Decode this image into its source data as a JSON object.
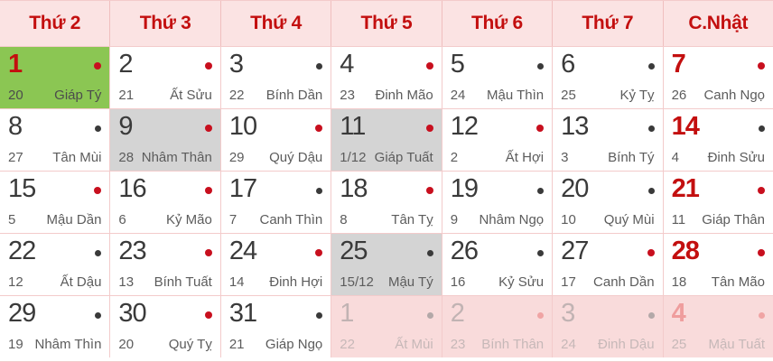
{
  "header": {
    "days": [
      "Thứ 2",
      "Thứ 3",
      "Thứ 4",
      "Thứ 5",
      "Thứ 6",
      "Thứ 7",
      "C.Nhật"
    ]
  },
  "weeks": [
    [
      {
        "solar": "1",
        "lunar": "20",
        "canchi": "Giáp Tý",
        "dot": "red",
        "variant": "today"
      },
      {
        "solar": "2",
        "lunar": "21",
        "canchi": "Ất Sửu",
        "dot": "red",
        "variant": "normal"
      },
      {
        "solar": "3",
        "lunar": "22",
        "canchi": "Bính Dần",
        "dot": "black",
        "variant": "normal"
      },
      {
        "solar": "4",
        "lunar": "23",
        "canchi": "Đinh Mão",
        "dot": "red",
        "variant": "normal"
      },
      {
        "solar": "5",
        "lunar": "24",
        "canchi": "Mậu Thìn",
        "dot": "black",
        "variant": "normal"
      },
      {
        "solar": "6",
        "lunar": "25",
        "canchi": "Kỷ Tỵ",
        "dot": "black",
        "variant": "normal"
      },
      {
        "solar": "7",
        "lunar": "26",
        "canchi": "Canh Ngọ",
        "dot": "red",
        "variant": "sunday"
      }
    ],
    [
      {
        "solar": "8",
        "lunar": "27",
        "canchi": "Tân Mùi",
        "dot": "black",
        "variant": "normal"
      },
      {
        "solar": "9",
        "lunar": "28",
        "canchi": "Nhâm Thân",
        "dot": "red",
        "variant": "highlight"
      },
      {
        "solar": "10",
        "lunar": "29",
        "canchi": "Quý Dậu",
        "dot": "red",
        "variant": "normal"
      },
      {
        "solar": "11",
        "lunar": "1/12",
        "canchi": "Giáp Tuất",
        "dot": "red",
        "variant": "highlight"
      },
      {
        "solar": "12",
        "lunar": "2",
        "canchi": "Ất Hợi",
        "dot": "red",
        "variant": "normal"
      },
      {
        "solar": "13",
        "lunar": "3",
        "canchi": "Bính Tý",
        "dot": "black",
        "variant": "normal"
      },
      {
        "solar": "14",
        "lunar": "4",
        "canchi": "Đinh Sửu",
        "dot": "black",
        "variant": "sunday"
      }
    ],
    [
      {
        "solar": "15",
        "lunar": "5",
        "canchi": "Mậu Dần",
        "dot": "red",
        "variant": "normal"
      },
      {
        "solar": "16",
        "lunar": "6",
        "canchi": "Kỷ Mão",
        "dot": "red",
        "variant": "normal"
      },
      {
        "solar": "17",
        "lunar": "7",
        "canchi": "Canh Thìn",
        "dot": "black",
        "variant": "normal"
      },
      {
        "solar": "18",
        "lunar": "8",
        "canchi": "Tân Tỵ",
        "dot": "red",
        "variant": "normal"
      },
      {
        "solar": "19",
        "lunar": "9",
        "canchi": "Nhâm Ngọ",
        "dot": "black",
        "variant": "normal"
      },
      {
        "solar": "20",
        "lunar": "10",
        "canchi": "Quý Mùi",
        "dot": "black",
        "variant": "normal"
      },
      {
        "solar": "21",
        "lunar": "11",
        "canchi": "Giáp Thân",
        "dot": "red",
        "variant": "sunday"
      }
    ],
    [
      {
        "solar": "22",
        "lunar": "12",
        "canchi": "Ất Dậu",
        "dot": "black",
        "variant": "normal"
      },
      {
        "solar": "23",
        "lunar": "13",
        "canchi": "Bính Tuất",
        "dot": "red",
        "variant": "normal"
      },
      {
        "solar": "24",
        "lunar": "14",
        "canchi": "Đinh Hợi",
        "dot": "red",
        "variant": "normal"
      },
      {
        "solar": "25",
        "lunar": "15/12",
        "canchi": "Mậu Tý",
        "dot": "black",
        "variant": "highlight"
      },
      {
        "solar": "26",
        "lunar": "16",
        "canchi": "Kỷ Sửu",
        "dot": "black",
        "variant": "normal"
      },
      {
        "solar": "27",
        "lunar": "17",
        "canchi": "Canh Dần",
        "dot": "red",
        "variant": "normal"
      },
      {
        "solar": "28",
        "lunar": "18",
        "canchi": "Tân Mão",
        "dot": "red",
        "variant": "sunday"
      }
    ],
    [
      {
        "solar": "29",
        "lunar": "19",
        "canchi": "Nhâm Thìn",
        "dot": "black",
        "variant": "normal"
      },
      {
        "solar": "30",
        "lunar": "20",
        "canchi": "Quý Tỵ",
        "dot": "red",
        "variant": "normal"
      },
      {
        "solar": "31",
        "lunar": "21",
        "canchi": "Giáp Ngọ",
        "dot": "black",
        "variant": "normal"
      },
      {
        "solar": "1",
        "lunar": "22",
        "canchi": "Ất Mùi",
        "dot": "gray",
        "variant": "next"
      },
      {
        "solar": "2",
        "lunar": "23",
        "canchi": "Bính Thân",
        "dot": "pink",
        "variant": "next"
      },
      {
        "solar": "3",
        "lunar": "24",
        "canchi": "Đinh Dậu",
        "dot": "gray",
        "variant": "next"
      },
      {
        "solar": "4",
        "lunar": "25",
        "canchi": "Mậu Tuất",
        "dot": "pink",
        "variant": "next-sunday"
      }
    ]
  ],
  "colors": {
    "header_bg": "#fbe3e3",
    "header_text": "#c30f0f",
    "today_bg": "#8bc653",
    "highlight_bg": "#d4d4d4",
    "next_month_bg": "#f9dbdb",
    "red_dot": "#c80f1e",
    "black_dot": "#3a3a3a",
    "border": "#f3cbcb"
  }
}
